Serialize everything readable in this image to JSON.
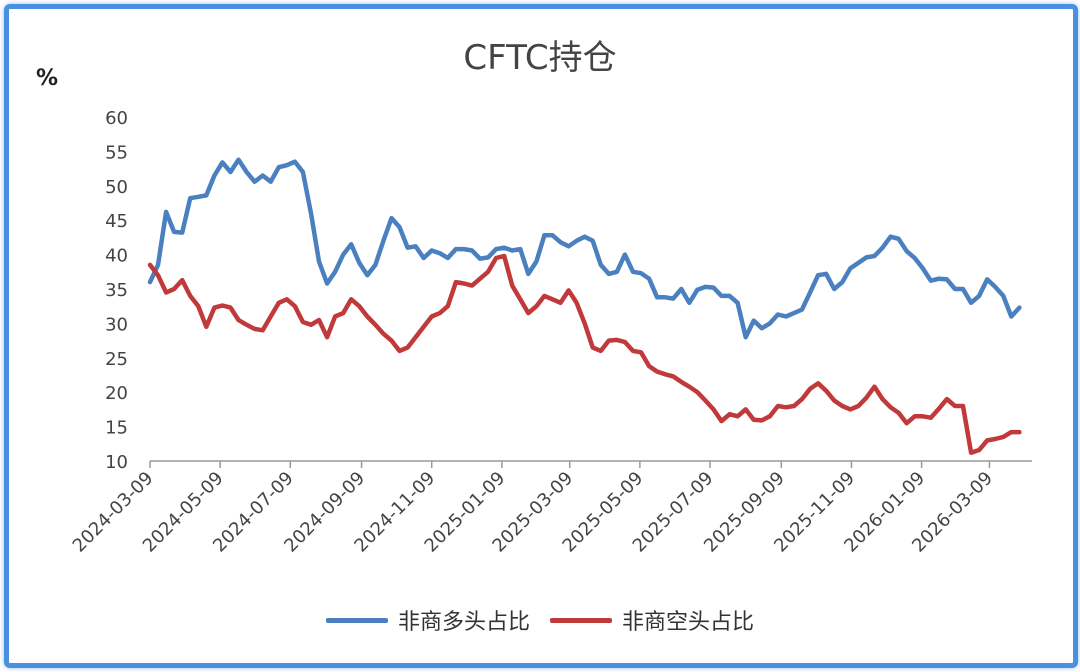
{
  "chart_data": {
    "type": "line",
    "title": "CFTC持仓",
    "ylabel": "%",
    "xlabel": "",
    "ylim": [
      10,
      60
    ],
    "yticks": [
      10,
      15,
      20,
      25,
      30,
      35,
      40,
      45,
      50,
      55,
      60
    ],
    "xlim": [
      "2024-03-09",
      "2026-04-15"
    ],
    "xticks": [
      "2024-03-09",
      "2024-05-09",
      "2024-07-09",
      "2024-09-09",
      "2024-11-09",
      "2025-01-09",
      "2025-03-09",
      "2025-05-09",
      "2025-07-09",
      "2025-09-09",
      "2025-11-09",
      "2026-01-09",
      "2026-03-09"
    ],
    "grid": false,
    "legend_position": "bottom",
    "series": [
      {
        "name": "非商多头占比",
        "color": "#4a7fc0",
        "points": [
          [
            "2024-03-09",
            36.0
          ],
          [
            "2024-03-16",
            38.5
          ],
          [
            "2024-03-23",
            46.2
          ],
          [
            "2024-03-30",
            43.3
          ],
          [
            "2024-04-06",
            43.2
          ],
          [
            "2024-04-13",
            48.2
          ],
          [
            "2024-04-20",
            48.4
          ],
          [
            "2024-04-27",
            48.6
          ],
          [
            "2024-05-04",
            51.5
          ],
          [
            "2024-05-11",
            53.4
          ],
          [
            "2024-05-18",
            52.0
          ],
          [
            "2024-05-25",
            53.8
          ],
          [
            "2024-06-01",
            52.0
          ],
          [
            "2024-06-08",
            50.6
          ],
          [
            "2024-06-15",
            51.5
          ],
          [
            "2024-06-22",
            50.6
          ],
          [
            "2024-06-29",
            52.7
          ],
          [
            "2024-07-06",
            53.0
          ],
          [
            "2024-07-13",
            53.5
          ],
          [
            "2024-07-20",
            52.0
          ],
          [
            "2024-07-27",
            46.0
          ],
          [
            "2024-08-03",
            39.0
          ],
          [
            "2024-08-10",
            35.8
          ],
          [
            "2024-08-17",
            37.5
          ],
          [
            "2024-08-24",
            40.0
          ],
          [
            "2024-08-31",
            41.5
          ],
          [
            "2024-09-07",
            38.8
          ],
          [
            "2024-09-14",
            37.0
          ],
          [
            "2024-09-21",
            38.5
          ],
          [
            "2024-09-28",
            42.0
          ],
          [
            "2024-10-05",
            45.3
          ],
          [
            "2024-10-12",
            44.0
          ],
          [
            "2024-10-19",
            41.0
          ],
          [
            "2024-10-26",
            41.2
          ],
          [
            "2024-11-02",
            39.5
          ],
          [
            "2024-11-09",
            40.6
          ],
          [
            "2024-11-16",
            40.2
          ],
          [
            "2024-11-23",
            39.5
          ],
          [
            "2024-11-30",
            40.8
          ],
          [
            "2024-12-07",
            40.8
          ],
          [
            "2024-12-14",
            40.6
          ],
          [
            "2024-12-21",
            39.4
          ],
          [
            "2024-12-28",
            39.6
          ],
          [
            "2025-01-04",
            40.8
          ],
          [
            "2025-01-11",
            41.0
          ],
          [
            "2025-01-18",
            40.6
          ],
          [
            "2025-01-25",
            40.8
          ],
          [
            "2025-02-01",
            37.2
          ],
          [
            "2025-02-08",
            39.0
          ],
          [
            "2025-02-15",
            42.8
          ],
          [
            "2025-02-22",
            42.8
          ],
          [
            "2025-03-01",
            41.8
          ],
          [
            "2025-03-08",
            41.2
          ],
          [
            "2025-03-15",
            42.0
          ],
          [
            "2025-03-22",
            42.6
          ],
          [
            "2025-03-29",
            42.0
          ],
          [
            "2025-04-05",
            38.5
          ],
          [
            "2025-04-12",
            37.2
          ],
          [
            "2025-04-19",
            37.5
          ],
          [
            "2025-04-26",
            40.0
          ],
          [
            "2025-05-03",
            37.5
          ],
          [
            "2025-05-10",
            37.3
          ],
          [
            "2025-05-17",
            36.5
          ],
          [
            "2025-05-24",
            33.8
          ],
          [
            "2025-05-31",
            33.8
          ],
          [
            "2025-06-07",
            33.6
          ],
          [
            "2025-06-14",
            35.0
          ],
          [
            "2025-06-21",
            33.0
          ],
          [
            "2025-06-28",
            34.9
          ],
          [
            "2025-07-05",
            35.3
          ],
          [
            "2025-07-12",
            35.2
          ],
          [
            "2025-07-19",
            34.0
          ],
          [
            "2025-07-26",
            34.0
          ],
          [
            "2025-08-02",
            33.0
          ],
          [
            "2025-08-09",
            28.0
          ],
          [
            "2025-08-16",
            30.4
          ],
          [
            "2025-08-23",
            29.3
          ],
          [
            "2025-08-30",
            30.0
          ],
          [
            "2025-09-06",
            31.3
          ],
          [
            "2025-09-13",
            31.0
          ],
          [
            "2025-09-20",
            31.5
          ],
          [
            "2025-09-27",
            32.0
          ],
          [
            "2025-10-04",
            34.5
          ],
          [
            "2025-10-11",
            37.0
          ],
          [
            "2025-10-18",
            37.2
          ],
          [
            "2025-10-25",
            35.0
          ],
          [
            "2025-11-01",
            36.0
          ],
          [
            "2025-11-08",
            38.0
          ],
          [
            "2025-11-15",
            38.8
          ],
          [
            "2025-11-22",
            39.6
          ],
          [
            "2025-11-29",
            39.8
          ],
          [
            "2025-12-06",
            41.0
          ],
          [
            "2025-12-13",
            42.6
          ],
          [
            "2025-12-20",
            42.3
          ],
          [
            "2025-12-27",
            40.5
          ],
          [
            "2026-01-03",
            39.5
          ],
          [
            "2026-01-10",
            38.0
          ],
          [
            "2026-01-17",
            36.2
          ],
          [
            "2026-01-24",
            36.5
          ],
          [
            "2026-01-31",
            36.4
          ],
          [
            "2026-02-07",
            35.0
          ],
          [
            "2026-02-14",
            35.0
          ],
          [
            "2026-02-21",
            33.0
          ],
          [
            "2026-02-28",
            34.0
          ],
          [
            "2026-03-07",
            36.4
          ],
          [
            "2026-03-14",
            35.3
          ],
          [
            "2026-03-21",
            34.0
          ],
          [
            "2026-03-28",
            31.0
          ],
          [
            "2026-04-04",
            32.3
          ]
        ]
      },
      {
        "name": "非商空头占比",
        "color": "#c0393b",
        "points": [
          [
            "2024-03-09",
            38.5
          ],
          [
            "2024-03-16",
            37.0
          ],
          [
            "2024-03-23",
            34.5
          ],
          [
            "2024-03-30",
            35.0
          ],
          [
            "2024-04-06",
            36.3
          ],
          [
            "2024-04-13",
            34.0
          ],
          [
            "2024-04-20",
            32.5
          ],
          [
            "2024-04-27",
            29.5
          ],
          [
            "2024-05-04",
            32.3
          ],
          [
            "2024-05-11",
            32.6
          ],
          [
            "2024-05-18",
            32.3
          ],
          [
            "2024-05-25",
            30.5
          ],
          [
            "2024-06-01",
            29.8
          ],
          [
            "2024-06-08",
            29.2
          ],
          [
            "2024-06-15",
            29.0
          ],
          [
            "2024-06-22",
            31.0
          ],
          [
            "2024-06-29",
            33.0
          ],
          [
            "2024-07-06",
            33.5
          ],
          [
            "2024-07-13",
            32.5
          ],
          [
            "2024-07-20",
            30.2
          ],
          [
            "2024-07-27",
            29.8
          ],
          [
            "2024-08-03",
            30.5
          ],
          [
            "2024-08-10",
            28.0
          ],
          [
            "2024-08-17",
            31.0
          ],
          [
            "2024-08-24",
            31.5
          ],
          [
            "2024-08-31",
            33.5
          ],
          [
            "2024-09-07",
            32.5
          ],
          [
            "2024-09-14",
            31.0
          ],
          [
            "2024-09-21",
            29.8
          ],
          [
            "2024-09-28",
            28.5
          ],
          [
            "2024-10-05",
            27.5
          ],
          [
            "2024-10-12",
            26.0
          ],
          [
            "2024-10-19",
            26.5
          ],
          [
            "2024-10-26",
            28.0
          ],
          [
            "2024-11-02",
            29.5
          ],
          [
            "2024-11-09",
            31.0
          ],
          [
            "2024-11-16",
            31.5
          ],
          [
            "2024-11-23",
            32.5
          ],
          [
            "2024-11-30",
            36.0
          ],
          [
            "2024-12-07",
            35.8
          ],
          [
            "2024-12-14",
            35.5
          ],
          [
            "2024-12-21",
            36.5
          ],
          [
            "2024-12-28",
            37.5
          ],
          [
            "2025-01-04",
            39.5
          ],
          [
            "2025-01-11",
            39.8
          ],
          [
            "2025-01-18",
            35.5
          ],
          [
            "2025-01-25",
            33.5
          ],
          [
            "2025-02-01",
            31.5
          ],
          [
            "2025-02-08",
            32.5
          ],
          [
            "2025-02-15",
            34.0
          ],
          [
            "2025-02-22",
            33.5
          ],
          [
            "2025-03-01",
            33.0
          ],
          [
            "2025-03-08",
            34.8
          ],
          [
            "2025-03-15",
            33.0
          ],
          [
            "2025-03-22",
            30.0
          ],
          [
            "2025-03-29",
            26.5
          ],
          [
            "2025-04-05",
            26.0
          ],
          [
            "2025-04-12",
            27.5
          ],
          [
            "2025-04-19",
            27.6
          ],
          [
            "2025-04-26",
            27.3
          ],
          [
            "2025-05-03",
            26.0
          ],
          [
            "2025-05-10",
            25.8
          ],
          [
            "2025-05-17",
            23.8
          ],
          [
            "2025-05-24",
            23.0
          ],
          [
            "2025-05-31",
            22.6
          ],
          [
            "2025-06-07",
            22.3
          ],
          [
            "2025-06-14",
            21.5
          ],
          [
            "2025-06-21",
            20.8
          ],
          [
            "2025-06-28",
            20.0
          ],
          [
            "2025-07-05",
            18.8
          ],
          [
            "2025-07-12",
            17.5
          ],
          [
            "2025-07-19",
            15.8
          ],
          [
            "2025-07-26",
            16.8
          ],
          [
            "2025-08-02",
            16.5
          ],
          [
            "2025-08-09",
            17.5
          ],
          [
            "2025-08-16",
            16.0
          ],
          [
            "2025-08-23",
            15.9
          ],
          [
            "2025-08-30",
            16.5
          ],
          [
            "2025-09-06",
            18.0
          ],
          [
            "2025-09-13",
            17.8
          ],
          [
            "2025-09-20",
            18.0
          ],
          [
            "2025-09-27",
            19.0
          ],
          [
            "2025-10-04",
            20.5
          ],
          [
            "2025-10-11",
            21.3
          ],
          [
            "2025-10-18",
            20.2
          ],
          [
            "2025-10-25",
            18.8
          ],
          [
            "2025-11-01",
            18.0
          ],
          [
            "2025-11-08",
            17.5
          ],
          [
            "2025-11-15",
            18.0
          ],
          [
            "2025-11-22",
            19.2
          ],
          [
            "2025-11-29",
            20.8
          ],
          [
            "2025-12-06",
            19.0
          ],
          [
            "2025-12-13",
            17.8
          ],
          [
            "2025-12-20",
            17.0
          ],
          [
            "2025-12-27",
            15.5
          ],
          [
            "2026-01-03",
            16.5
          ],
          [
            "2026-01-10",
            16.5
          ],
          [
            "2026-01-17",
            16.3
          ],
          [
            "2026-01-24",
            17.6
          ],
          [
            "2026-01-31",
            19.0
          ],
          [
            "2026-02-07",
            18.0
          ],
          [
            "2026-02-14",
            18.0
          ],
          [
            "2026-02-21",
            11.2
          ],
          [
            "2026-02-28",
            11.6
          ],
          [
            "2026-03-07",
            13.0
          ],
          [
            "2026-03-14",
            13.2
          ],
          [
            "2026-03-21",
            13.5
          ],
          [
            "2026-03-28",
            14.2
          ],
          [
            "2026-04-04",
            14.2
          ]
        ]
      }
    ]
  }
}
